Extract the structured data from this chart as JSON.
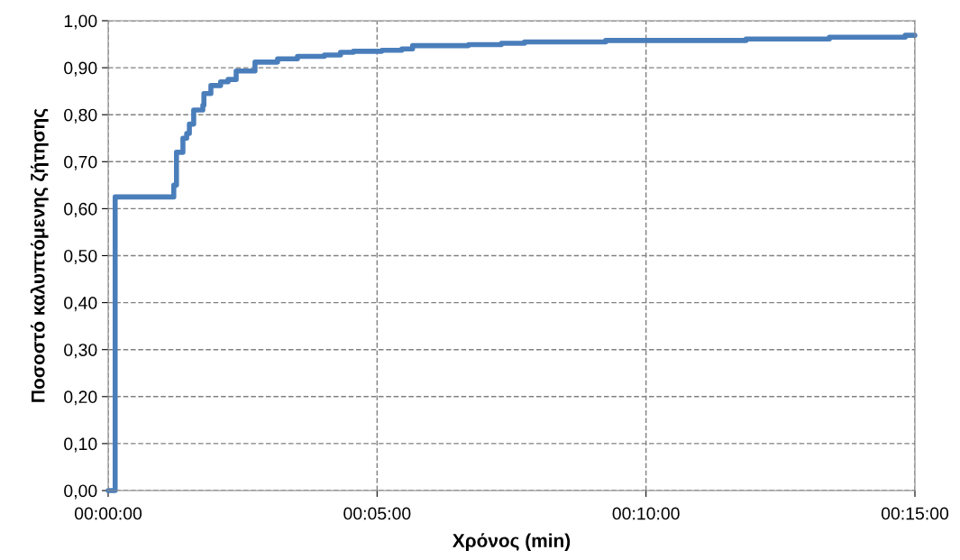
{
  "chart_data": {
    "type": "step",
    "xlabel": "Χρόνος (min)",
    "ylabel": "Ποσοστό καλυπτόμενης ζήτησης",
    "series": [
      {
        "color": "#4a7ebb",
        "x": [
          0,
          0.13,
          1.22,
          1.27,
          1.39,
          1.46,
          1.51,
          1.59,
          1.76,
          1.78,
          1.91,
          2.09,
          2.23,
          2.38,
          2.73,
          3.15,
          3.52,
          4.02,
          4.32,
          4.56,
          5.09,
          5.46,
          5.66,
          6.7,
          7.31,
          7.74,
          9.25,
          11.86,
          13.41,
          14.82,
          15
        ],
        "values": [
          0,
          0.625,
          0.65,
          0.72,
          0.75,
          0.76,
          0.78,
          0.81,
          0.82,
          0.845,
          0.862,
          0.87,
          0.875,
          0.893,
          0.912,
          0.919,
          0.924,
          0.927,
          0.933,
          0.935,
          0.937,
          0.94,
          0.947,
          0.949,
          0.952,
          0.955,
          0.958,
          0.961,
          0.965,
          0.969,
          0.969
        ]
      }
    ],
    "xlim": [
      0,
      15
    ],
    "xticks": [
      {
        "value": 0,
        "label": "00:00:00"
      },
      {
        "value": 5,
        "label": "00:05:00"
      },
      {
        "value": 10,
        "label": "00:10:00"
      },
      {
        "value": 15,
        "label": "00:15:00"
      }
    ],
    "ylim": [
      0,
      1
    ],
    "yticks": [
      {
        "value": 0,
        "label": "0,00"
      },
      {
        "value": 0.1,
        "label": "0,10"
      },
      {
        "value": 0.2,
        "label": "0,20"
      },
      {
        "value": 0.3,
        "label": "0,30"
      },
      {
        "value": 0.4,
        "label": "0,40"
      },
      {
        "value": 0.5,
        "label": "0,50"
      },
      {
        "value": 0.6,
        "label": "0,60"
      },
      {
        "value": 0.7,
        "label": "0,70"
      },
      {
        "value": 0.8,
        "label": "0,80"
      },
      {
        "value": 0.9,
        "label": "0,90"
      },
      {
        "value": 1,
        "label": "1,00"
      }
    ],
    "grid": true,
    "line_style": "solid"
  }
}
